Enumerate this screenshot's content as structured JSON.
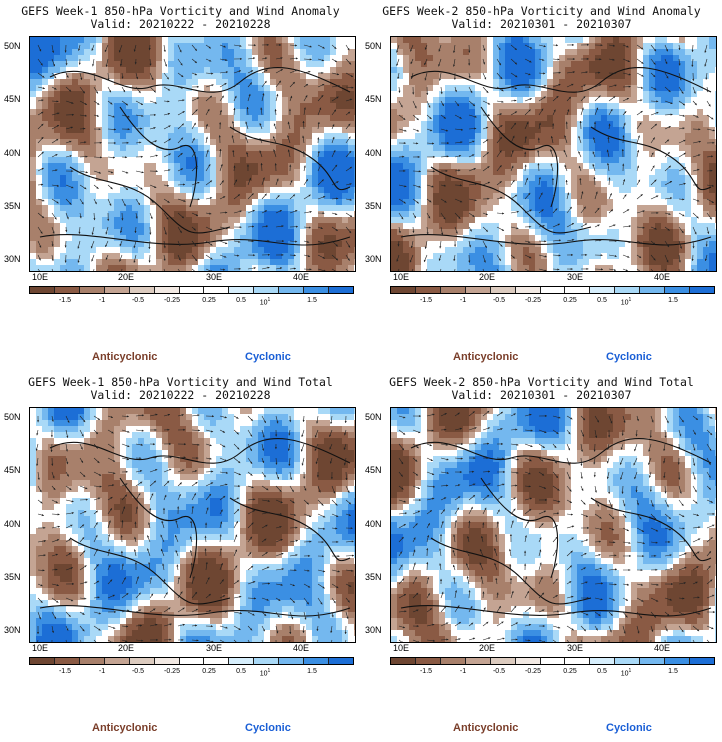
{
  "panels": [
    {
      "title": "GEFS Week-1 850-hPa Vorticity and Wind Anomaly",
      "valid": "Valid: 20210222 - 20210228"
    },
    {
      "title": "GEFS Week-2 850-hPa Vorticity and Wind Anomaly",
      "valid": "Valid: 20210301 - 20210307"
    },
    {
      "title": "GEFS Week-1 850-hPa Vorticity and Wind Total",
      "valid": "Valid: 20210222 - 20210228"
    },
    {
      "title": "GEFS Week-2 850-hPa Vorticity and Wind Total",
      "valid": "Valid: 20210301 - 20210307"
    }
  ],
  "axes": {
    "lat_labels": [
      "50N",
      "45N",
      "40N",
      "35N",
      "30N"
    ],
    "lon_labels": [
      "10E",
      "20E",
      "30E",
      "40E"
    ]
  },
  "colorbar": {
    "labels": [
      "-1.5",
      "-1",
      "-0.5",
      "-0.25",
      "0.25",
      "0.5",
      "1.5"
    ],
    "scale_text": "10",
    "scale_exp": "1",
    "colors": [
      "#6e4632",
      "#8a5a44",
      "#a8806b",
      "#c4a493",
      "#dccbbf",
      "#f2e9e3",
      "#ffffff",
      "#ffffff",
      "#d6eefc",
      "#a9d9f7",
      "#74b8ef",
      "#3b8fe3",
      "#1c6ed6"
    ]
  },
  "legend": {
    "anticyclonic": "Anticyclonic",
    "cyclonic": "Cyclonic"
  }
}
